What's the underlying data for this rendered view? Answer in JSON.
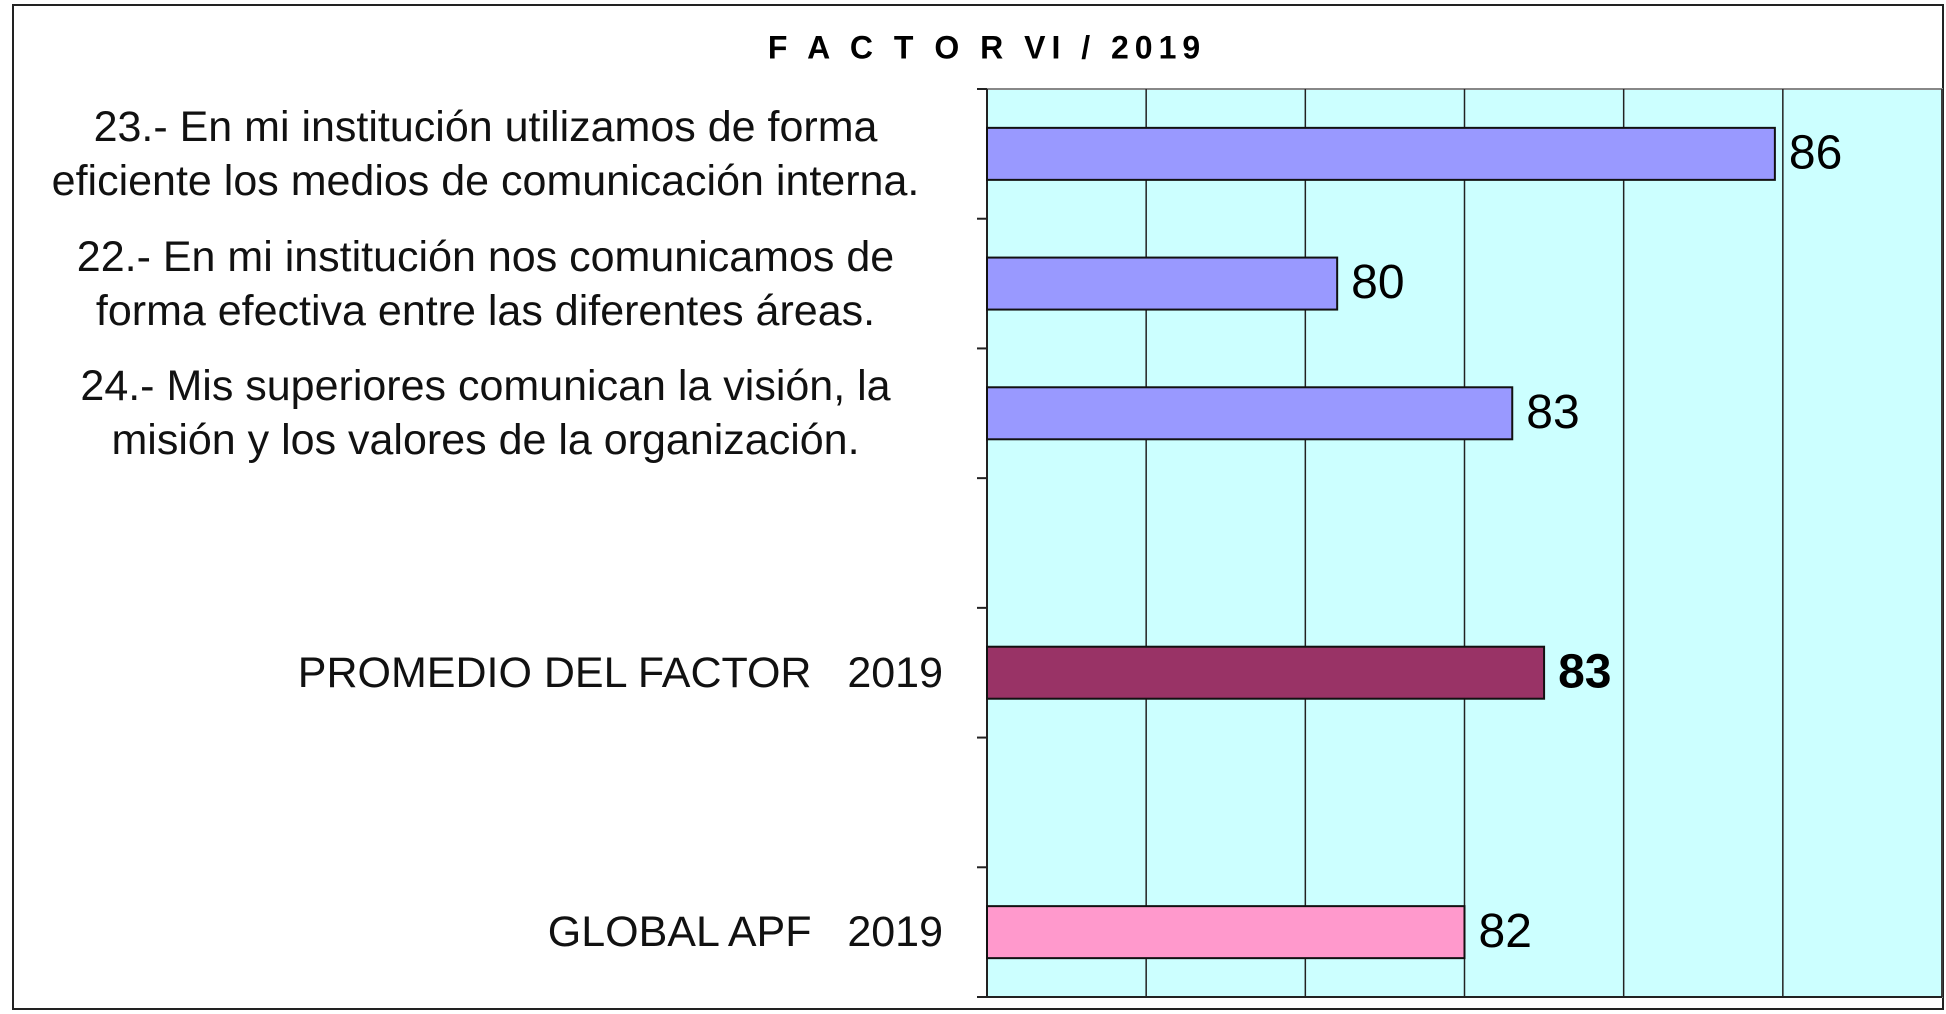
{
  "chart_data": {
    "type": "bar",
    "orientation": "horizontal",
    "title": "F A C T O R  VI   /   2019",
    "categories": [
      "23.- En mi institución utilizamos de forma eficiente los medios de comunicación interna.",
      "22.- En mi institución nos comunicamos de forma efectiva entre las diferentes áreas.",
      "24.- Mis superiores comunican la visión, la misión y los valores de la organización.",
      null,
      "PROMEDIO DEL FACTOR   2019",
      null,
      "GLOBAL APF   2019"
    ],
    "values": [
      85.9,
      80.4,
      82.6,
      null,
      83,
      null,
      82
    ],
    "value_labels": [
      "86",
      "80",
      "83",
      null,
      "83",
      null,
      "82"
    ],
    "colors": [
      "#9999ff",
      "#9999ff",
      "#9999ff",
      null,
      "#993366",
      null,
      "#ff99cc"
    ],
    "xlim": [
      76,
      88
    ],
    "xticks": [
      76,
      78,
      80,
      82,
      84,
      86,
      88
    ],
    "grid": true,
    "background": "#ccffff"
  }
}
